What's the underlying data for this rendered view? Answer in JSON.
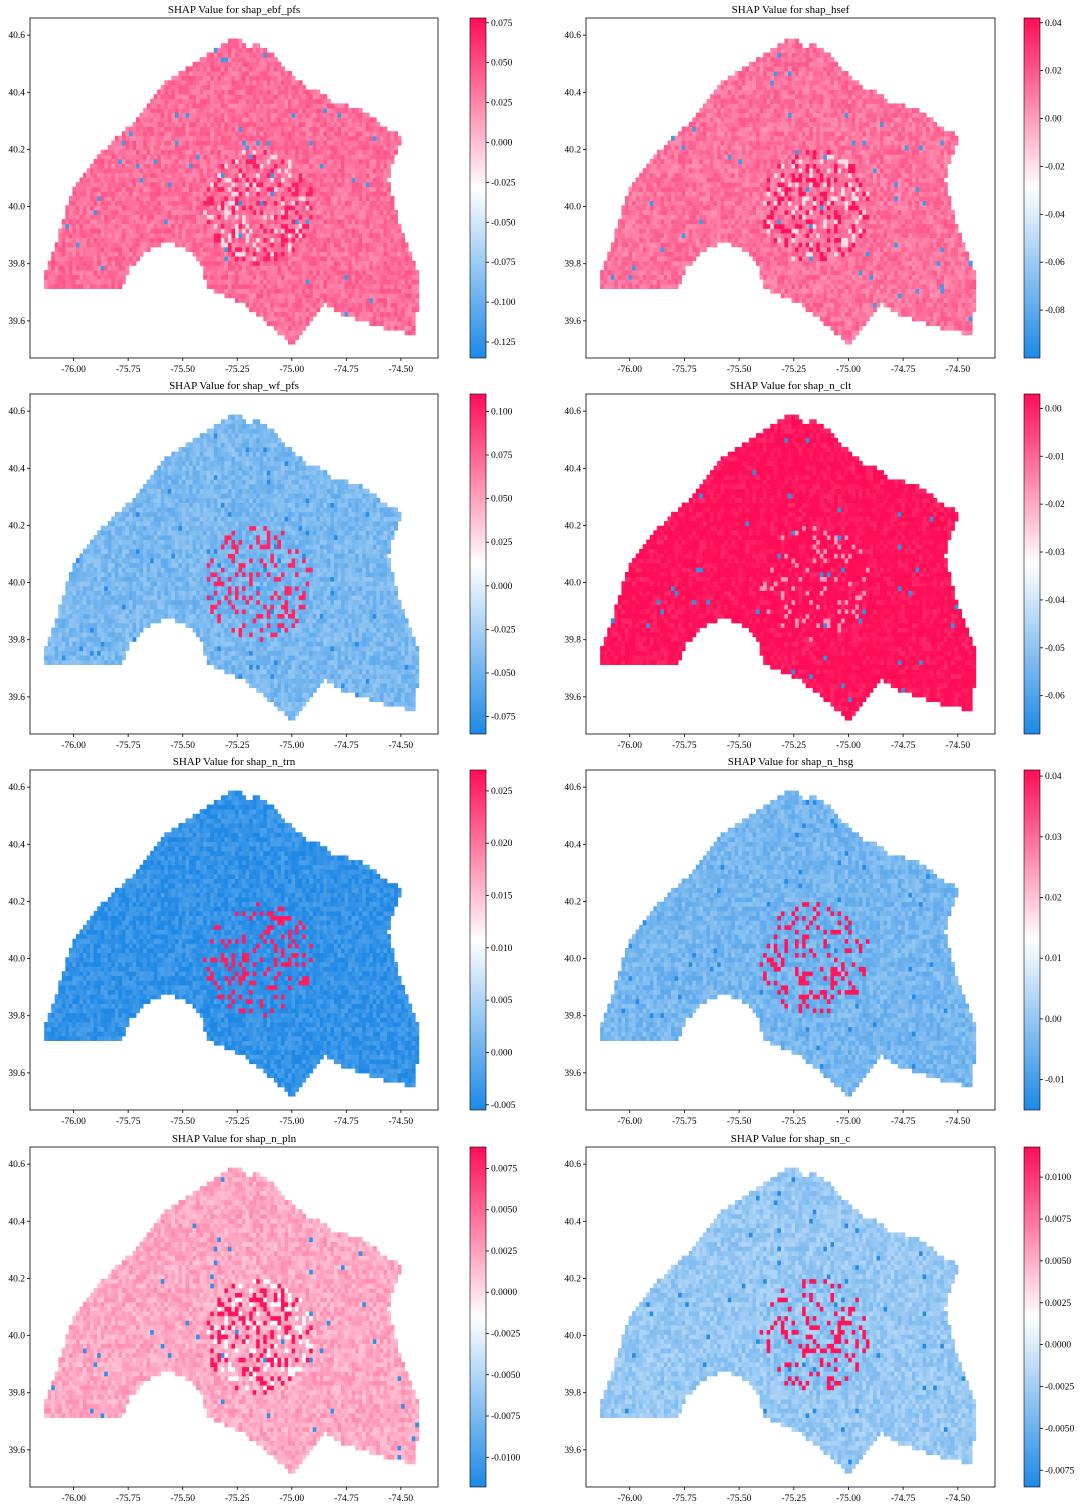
{
  "figure": {
    "colormap": {
      "low": "#1e88e5",
      "mid": "#ffffff",
      "high": "#ff0d57"
    },
    "region_shape": "county-polygon-map",
    "x_ticks": [
      "-76.00",
      "-75.75",
      "-75.50",
      "-75.25",
      "-75.00",
      "-74.75",
      "-74.50"
    ],
    "y_ticks": [
      "40.6",
      "40.4",
      "40.2",
      "40.0",
      "39.8",
      "39.6"
    ],
    "x_range": [
      -76.2,
      -74.33
    ],
    "y_range": [
      39.47,
      40.66
    ]
  },
  "panels": [
    {
      "title": "SHAP Value for shap_ebf_pfs",
      "cbar_ticks": [
        "0.075",
        "0.050",
        "0.025",
        "0.000",
        "-0.025",
        "-0.050",
        "-0.075",
        "-0.100",
        "-0.125"
      ],
      "cbar_range": [
        -0.135,
        0.078
      ],
      "base": 0.035,
      "hot": 0.07,
      "cold": -0.12
    },
    {
      "title": "SHAP Value for shap_hsef",
      "cbar_ticks": [
        "0.04",
        "0.02",
        "0.00",
        "-0.02",
        "-0.04",
        "-0.06",
        "-0.08"
      ],
      "cbar_range": [
        -0.1,
        0.042
      ],
      "base": 0.012,
      "hot": 0.04,
      "cold": -0.09
    },
    {
      "title": "SHAP Value for shap_wf_pfs",
      "cbar_ticks": [
        "0.100",
        "0.075",
        "0.050",
        "0.025",
        "0.000",
        "-0.025",
        "-0.050",
        "-0.075"
      ],
      "cbar_range": [
        -0.085,
        0.11
      ],
      "base": -0.045,
      "hot": 0.1,
      "cold": -0.08
    },
    {
      "title": "SHAP Value for shap_n_clt",
      "cbar_ticks": [
        "0.00",
        "-0.01",
        "-0.02",
        "-0.03",
        "-0.04",
        "-0.05",
        "-0.06"
      ],
      "cbar_range": [
        -0.068,
        0.003
      ],
      "base": 0.003,
      "hot": 0.003,
      "cold": -0.065
    },
    {
      "title": "SHAP Value for shap_n_trn",
      "cbar_ticks": [
        "0.025",
        "0.020",
        "0.015",
        "0.010",
        "0.005",
        "0.000",
        "-0.005"
      ],
      "cbar_range": [
        -0.0055,
        0.027
      ],
      "base": -0.004,
      "hot": 0.026,
      "cold": -0.005
    },
    {
      "title": "SHAP Value for shap_n_hsg",
      "cbar_ticks": [
        "0.04",
        "0.03",
        "0.02",
        "0.01",
        "0.00",
        "-0.01"
      ],
      "cbar_range": [
        -0.015,
        0.041
      ],
      "base": -0.004,
      "hot": 0.04,
      "cold": -0.014
    },
    {
      "title": "SHAP Value for shap_n_pln",
      "cbar_ticks": [
        "0.0075",
        "0.0050",
        "0.0025",
        "0.0000",
        "-0.0025",
        "-0.0050",
        "-0.0075",
        "-0.0100"
      ],
      "cbar_range": [
        -0.0118,
        0.0088
      ],
      "base": 0.0022,
      "hot": 0.0085,
      "cold": -0.011
    },
    {
      "title": "SHAP Value for shap_sn_c",
      "cbar_ticks": [
        "0.0100",
        "0.0075",
        "0.0050",
        "0.0025",
        "0.0000",
        "-0.0025",
        "-0.0050",
        "-0.0075"
      ],
      "cbar_range": [
        -0.0085,
        0.0118
      ],
      "base": -0.003,
      "hot": 0.0115,
      "cold": -0.0082
    }
  ]
}
